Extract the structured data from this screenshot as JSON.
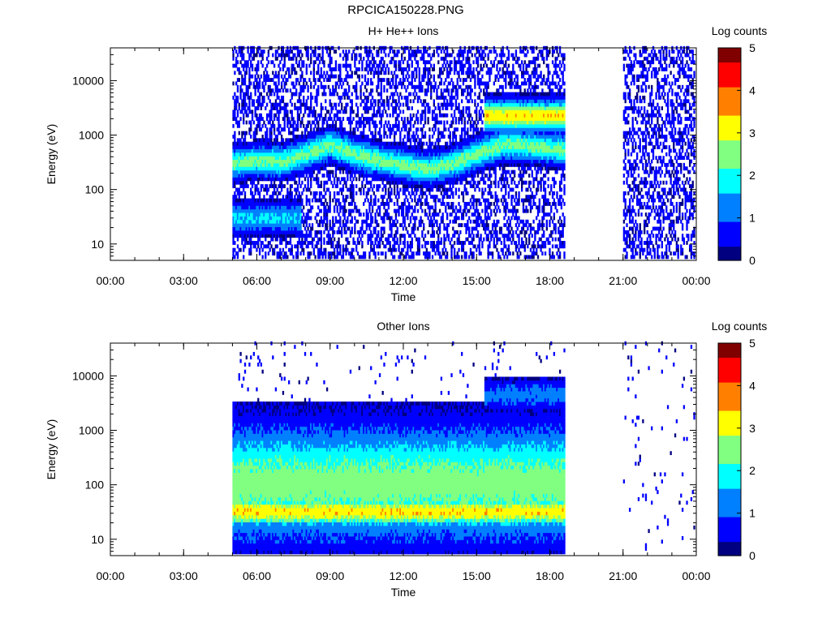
{
  "file_title": "RPCICA150228.PNG",
  "colors": {
    "colormap": [
      "#000080",
      "#0000ff",
      "#0080ff",
      "#00ffff",
      "#80ff80",
      "#ffff00",
      "#ff8000",
      "#ff0000",
      "#800000"
    ],
    "background": "#ffffff"
  },
  "chart_data": [
    {
      "type": "heatmap",
      "title": "H+ He++ Ions",
      "xlabel": "Time",
      "ylabel": "Energy (eV)",
      "colorbar_label": "Log counts",
      "x_ticks": [
        "00:00",
        "03:00",
        "06:00",
        "09:00",
        "12:00",
        "15:00",
        "18:00",
        "21:00",
        "00:00"
      ],
      "y_ticks": [
        "10",
        "100",
        "1000",
        "10000"
      ],
      "colorbar_ticks": [
        "0",
        "1",
        "2",
        "3",
        "4",
        "5"
      ],
      "xlim_hours": [
        0,
        24
      ],
      "ylim_eV": [
        5,
        40000
      ],
      "clim": [
        0,
        5
      ],
      "y_scale": "log",
      "data_coverage_hours": [
        [
          5.0,
          18.6
        ],
        [
          21.0,
          23.9
        ]
      ],
      "features": [
        {
          "name": "main band",
          "t": [
            5.0,
            6.0,
            7.0,
            8.0,
            9.0,
            10.0,
            11.0,
            12.0,
            13.0,
            14.0,
            15.0,
            16.0,
            17.0,
            18.6
          ],
          "energy_eV": [
            280,
            320,
            300,
            420,
            620,
            420,
            320,
            260,
            220,
            280,
            420,
            620,
            600,
            500
          ],
          "log_counts": 2.4
        },
        {
          "name": "high-energy band",
          "t": [
            15.3,
            18.6
          ],
          "energy_eV": [
            2100,
            2100
          ],
          "log_counts": 3.3
        },
        {
          "name": "low-energy band",
          "t": [
            5.0,
            7.8
          ],
          "energy_eV": [
            28,
            28
          ],
          "log_counts": 1.7
        }
      ]
    },
    {
      "type": "heatmap",
      "title": "Other Ions",
      "xlabel": "Time",
      "ylabel": "Energy (eV)",
      "colorbar_label": "Log counts",
      "x_ticks": [
        "00:00",
        "03:00",
        "06:00",
        "09:00",
        "12:00",
        "15:00",
        "18:00",
        "21:00",
        "00:00"
      ],
      "y_ticks": [
        "10",
        "100",
        "1000",
        "10000"
      ],
      "colorbar_ticks": [
        "0",
        "1",
        "2",
        "3",
        "4",
        "5"
      ],
      "xlim_hours": [
        0,
        24
      ],
      "ylim_eV": [
        5,
        40000
      ],
      "clim": [
        0,
        5
      ],
      "y_scale": "log",
      "data_coverage_hours": [
        [
          5.0,
          18.6
        ],
        [
          21.0,
          23.9
        ]
      ],
      "features": [
        {
          "name": "broad band",
          "t": [
            5.0,
            9.0,
            12.0,
            15.0,
            18.6
          ],
          "energy_eV": [
            100,
            100,
            100,
            100,
            100
          ],
          "log_counts": 2.5
        },
        {
          "name": "low-energy band",
          "t": [
            5.0,
            18.6
          ],
          "energy_eV": [
            30,
            30
          ],
          "log_counts": 3.3
        },
        {
          "name": "high-energy band",
          "t": [
            15.3,
            18.6
          ],
          "energy_eV": [
            4200,
            4200
          ],
          "log_counts": 1.2
        }
      ]
    }
  ]
}
